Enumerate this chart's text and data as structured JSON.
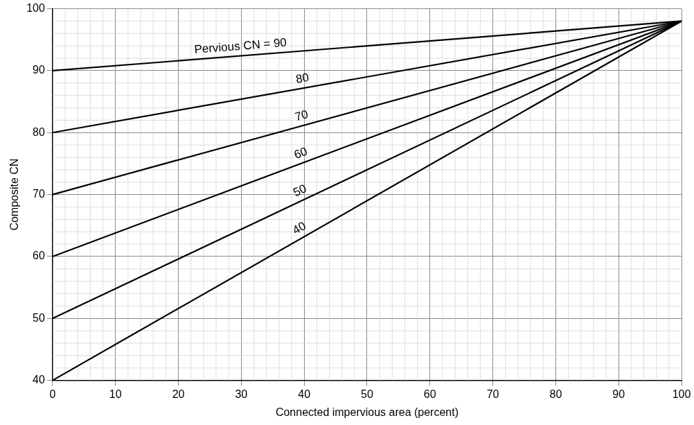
{
  "chart_data": {
    "type": "line",
    "xlabel": "Connected impervious area (percent)",
    "ylabel": "Composite CN",
    "x": [
      0,
      100
    ],
    "series": [
      {
        "name": "Pervious CN = 90",
        "color": "#000000",
        "values": [
          90,
          98
        ]
      },
      {
        "name": "80",
        "color": "#000000",
        "values": [
          80,
          98
        ]
      },
      {
        "name": "70",
        "color": "#000000",
        "values": [
          70,
          98
        ]
      },
      {
        "name": "60",
        "color": "#000000",
        "values": [
          60,
          98
        ]
      },
      {
        "name": "50",
        "color": "#000000",
        "values": [
          50,
          98
        ]
      },
      {
        "name": "40",
        "color": "#000000",
        "values": [
          40,
          98
        ]
      }
    ],
    "xlim": [
      0,
      100
    ],
    "xticks": [
      0,
      10,
      20,
      30,
      40,
      50,
      60,
      70,
      80,
      90,
      100
    ],
    "ylim": [
      40,
      100
    ],
    "yticks": [
      40,
      50,
      60,
      70,
      80,
      90,
      100
    ],
    "grid": true,
    "legend": false,
    "marker": "none",
    "line_style": "solid"
  }
}
